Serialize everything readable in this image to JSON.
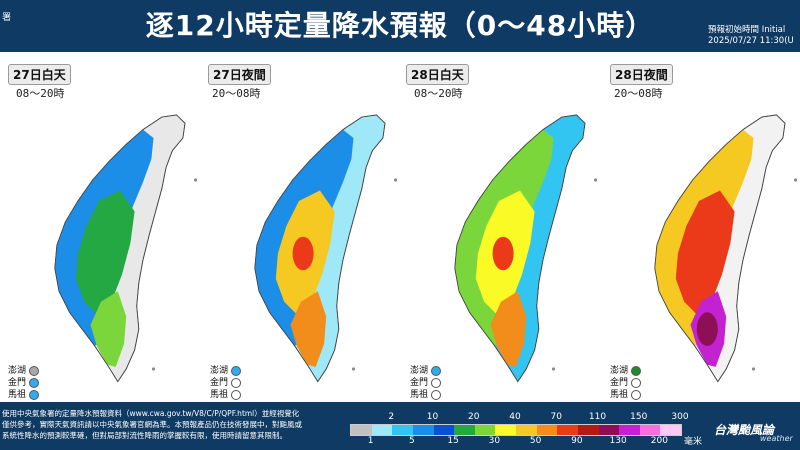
{
  "header": {
    "logo_text": "署",
    "title": "逐12小時定量降水預報（0～48小時）",
    "init_label": "預報初始時間 Initial",
    "init_time": "2025/07/27  11:30(U"
  },
  "panels": [
    {
      "tag": "27日白天",
      "period": "08～20時",
      "dots": [
        "#a9a9a9",
        "#33aaee",
        "#33aaee"
      ]
    },
    {
      "tag": "27日夜間",
      "period": "20～08時",
      "dots": [
        "#33aaee",
        "#ffffff",
        "#ffffff"
      ]
    },
    {
      "tag": "28日白天",
      "period": "08～20時",
      "dots": [
        "#33aaee",
        "#ffffff",
        "#ffffff"
      ]
    },
    {
      "tag": "28日夜間",
      "period": "20～08時",
      "dots": [
        "#1e8c2d",
        "#ffffff",
        "#ffffff"
      ]
    }
  ],
  "islands": {
    "penghu": "澎湖",
    "kinmen": "金門",
    "matsu": "馬祖"
  },
  "disclaimer": {
    "line1": "使用中央氣象署的定量降水預報資料（www.cwa.gov.tw/V8/C/P/QPF.html）並經視覺化",
    "line2": "僅供參考，實際天氣資訊請以中央氣象署官網為準。本預報產品仍在技術發展中，對颱風或",
    "line3": "系統性降水的預測較準確，但對局部對流性降雨的掌握較有限，使用時請留意其限制。"
  },
  "legend": {
    "top_labels": [
      "2",
      "10",
      "20",
      "40",
      "70",
      "110",
      "150",
      "300"
    ],
    "bottom_labels": [
      "1",
      "5",
      "15",
      "30",
      "50",
      "90",
      "130",
      "200"
    ],
    "unit": "毫米",
    "colors": [
      "#c1c1c1",
      "#9ee8f7",
      "#33c5f2",
      "#1c8ee8",
      "#0a4fd6",
      "#23a843",
      "#7bd63c",
      "#fafa27",
      "#f5c822",
      "#f28d1c",
      "#ea3a19",
      "#b51a12",
      "#8c0f58",
      "#c222d0",
      "#f76ee0",
      "#ffc8f4"
    ]
  },
  "brand": {
    "name": "台灣颱風論",
    "sub": "weather"
  }
}
